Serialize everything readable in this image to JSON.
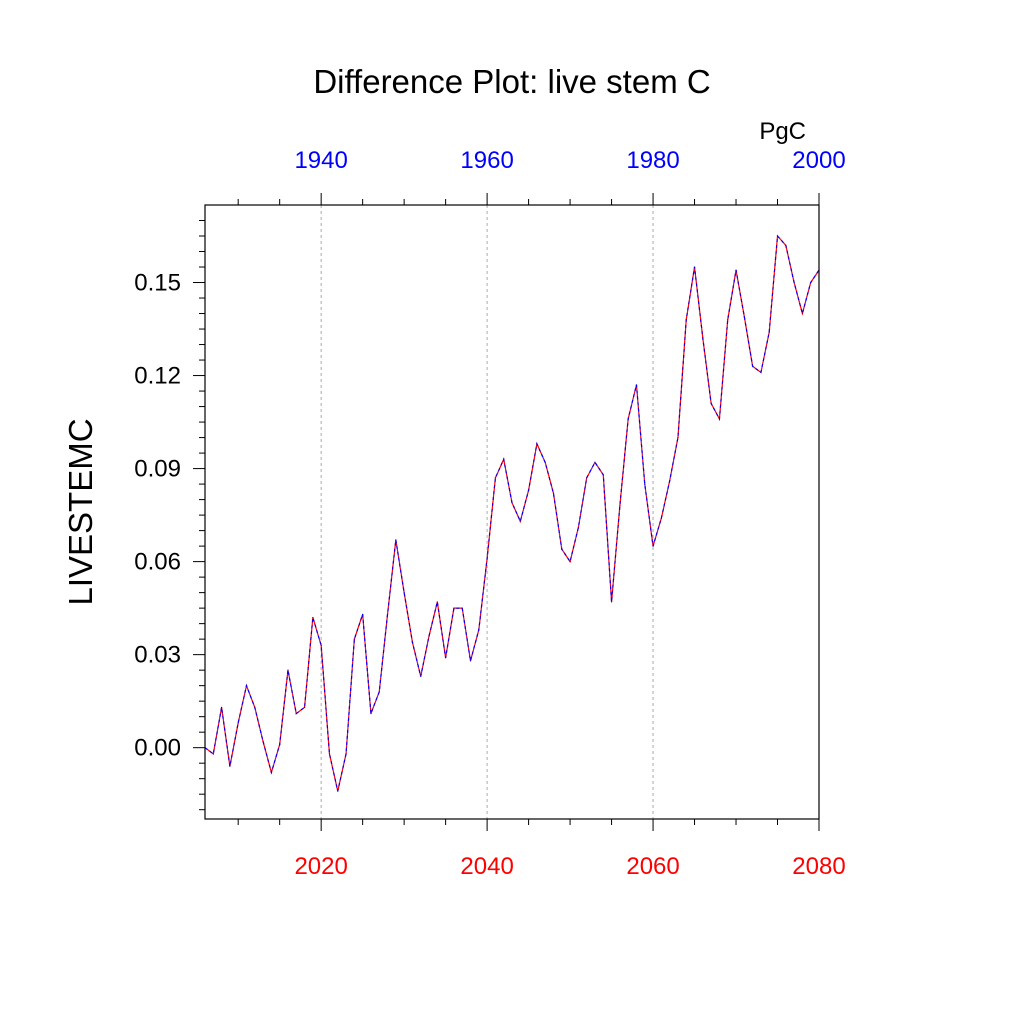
{
  "chart_data": {
    "type": "line",
    "title": "Difference Plot: live stem C",
    "ylabel": "LIVESTEMC",
    "units": "PgC",
    "ylim": [
      -0.023,
      0.175
    ],
    "yticks": [
      "0.00",
      "0.03",
      "0.06",
      "0.09",
      "0.12",
      "0.15"
    ],
    "bottom_axis": {
      "xlim": [
        2006,
        2080
      ],
      "tick_labels": [
        "2020",
        "2040",
        "2060",
        "2080"
      ],
      "tick_color": "#ff0000"
    },
    "top_axis": {
      "xlim": [
        1926,
        2000
      ],
      "tick_labels": [
        "1940",
        "1960",
        "1980",
        "2000"
      ],
      "tick_color": "#0000ff"
    },
    "vertical_gridlines_at": [
      2020,
      2040,
      2060
    ],
    "series": [
      {
        "color_a": "#ff0000",
        "color_b": "#0000ff",
        "x": [
          2006,
          2007,
          2008,
          2009,
          2010,
          2011,
          2012,
          2013,
          2014,
          2015,
          2016,
          2017,
          2018,
          2019,
          2020,
          2021,
          2022,
          2023,
          2024,
          2025,
          2026,
          2027,
          2028,
          2029,
          2030,
          2031,
          2032,
          2033,
          2034,
          2035,
          2036,
          2037,
          2038,
          2039,
          2040,
          2041,
          2042,
          2043,
          2044,
          2045,
          2046,
          2047,
          2048,
          2049,
          2050,
          2051,
          2052,
          2053,
          2054,
          2055,
          2056,
          2057,
          2058,
          2059,
          2060,
          2061,
          2062,
          2063,
          2064,
          2065,
          2066,
          2067,
          2068,
          2069,
          2070,
          2071,
          2072,
          2073,
          2074,
          2075,
          2076,
          2077,
          2078,
          2079,
          2080
        ],
        "values": [
          0.0,
          -0.002,
          0.013,
          -0.006,
          0.008,
          0.02,
          0.013,
          0.002,
          -0.008,
          0.001,
          0.025,
          0.011,
          0.013,
          0.042,
          0.033,
          -0.002,
          -0.014,
          -0.002,
          0.035,
          0.043,
          0.011,
          0.018,
          0.043,
          0.067,
          0.05,
          0.034,
          0.023,
          0.036,
          0.047,
          0.029,
          0.045,
          0.045,
          0.028,
          0.038,
          0.061,
          0.087,
          0.093,
          0.079,
          0.073,
          0.083,
          0.098,
          0.092,
          0.082,
          0.064,
          0.06,
          0.071,
          0.087,
          0.092,
          0.088,
          0.047,
          0.078,
          0.106,
          0.117,
          0.085,
          0.065,
          0.074,
          0.086,
          0.1,
          0.138,
          0.155,
          0.132,
          0.111,
          0.106,
          0.138,
          0.154,
          0.139,
          0.123,
          0.121,
          0.134,
          0.165,
          0.162,
          0.15,
          0.14,
          0.15,
          0.154
        ]
      }
    ]
  }
}
